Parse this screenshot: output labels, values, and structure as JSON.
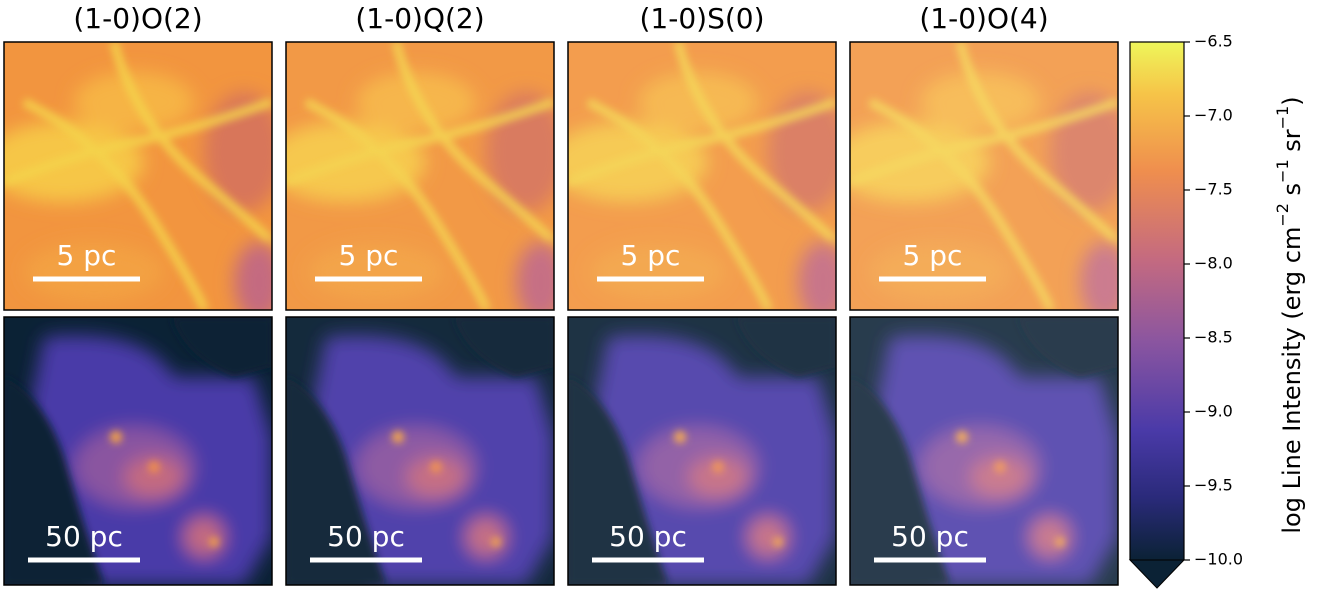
{
  "chart_data": {
    "type": "image-grid",
    "panel_titles": [
      "(1-0)O(2)",
      "(1-0)Q(2)",
      "(1-0)S(0)",
      "(1-0)O(4)"
    ],
    "scale_labels": [
      "5 pc",
      "50 pc"
    ],
    "colorbar": {
      "label_parts": [
        "log  Line Intensity (erg cm",
        "−2",
        " s",
        "−1",
        " sr",
        "−1",
        ")"
      ],
      "ylim": [
        -10.0,
        -6.5
      ],
      "yticks": [
        {
          "value": -6.5,
          "label": "−6.5"
        },
        {
          "value": -7.0,
          "label": "−7.0"
        },
        {
          "value": -7.5,
          "label": "−7.5"
        },
        {
          "value": -8.0,
          "label": "−8.0"
        },
        {
          "value": -8.5,
          "label": "−8.5"
        },
        {
          "value": -9.0,
          "label": "−9.0"
        },
        {
          "value": -9.5,
          "label": "−9.5"
        },
        {
          "value": -10.0,
          "label": "−10.0"
        }
      ],
      "extend": "min"
    }
  }
}
